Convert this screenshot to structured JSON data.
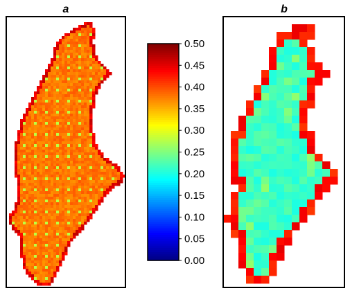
{
  "chart_data": {
    "type": "heatmap",
    "colormap": "jet",
    "colorbar": {
      "range": [
        0.0,
        0.5
      ],
      "ticks": [
        "0.00",
        "0.05",
        "0.10",
        "0.15",
        "0.20",
        "0.25",
        "0.30",
        "0.35",
        "0.40",
        "0.45",
        "0.50"
      ]
    },
    "panels": [
      {
        "label": "a",
        "grid_on": false,
        "base_value": 0.38,
        "spot_value": 0.28,
        "edge_value": 0.47,
        "description_values": {
          "min": 0.25,
          "max": 0.48
        }
      },
      {
        "label": "b",
        "grid_on": false,
        "base_value": 0.215,
        "spot_value": 0.24,
        "edge_value": 0.45,
        "description_values": {
          "min": 0.17,
          "max": 0.46
        }
      }
    ]
  }
}
